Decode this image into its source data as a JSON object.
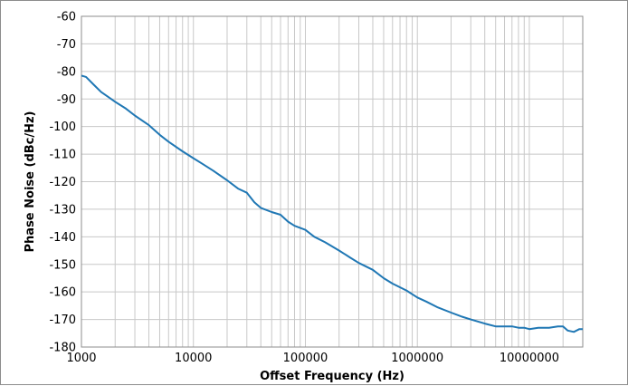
{
  "chart_data": {
    "type": "line",
    "title": "",
    "xlabel": "Offset Frequency (Hz)",
    "ylabel": "Phase Noise (dBc/Hz)",
    "x_scale": "log",
    "xlim": [
      1000,
      30000000
    ],
    "ylim": [
      -180,
      -60
    ],
    "x_ticks": [
      1000,
      10000,
      100000,
      1000000,
      10000000
    ],
    "x_tick_labels": [
      "1000",
      "10000",
      "100000",
      "1000000",
      "10000000"
    ],
    "y_ticks": [
      -60,
      -70,
      -80,
      -90,
      -100,
      -110,
      -120,
      -130,
      -140,
      -150,
      -160,
      -170,
      -180
    ],
    "y_tick_labels": [
      "-60",
      "-70",
      "-80",
      "-90",
      "-100",
      "-110",
      "-120",
      "-130",
      "-140",
      "-150",
      "-160",
      "-170",
      "-180"
    ],
    "grid": true,
    "minor_grid_x": true,
    "legend": "none",
    "series": [
      {
        "color": "#1f77b4",
        "x": [
          1000,
          1100,
          1300,
          1500,
          1700,
          2000,
          2500,
          3000,
          4000,
          5000,
          6000,
          8000,
          10000,
          12000,
          15000,
          20000,
          25000,
          30000,
          35000,
          40000,
          50000,
          60000,
          70000,
          80000,
          100000,
          120000,
          150000,
          200000,
          250000,
          300000,
          400000,
          500000,
          600000,
          800000,
          1000000,
          1200000,
          1500000,
          2000000,
          2500000,
          3000000,
          4000000,
          5000000,
          6000000,
          7000000,
          8000000,
          9000000,
          10000000,
          12000000,
          15000000,
          18000000,
          20000000,
          22000000,
          25000000,
          28000000,
          30000000
        ],
        "y": [
          -81.5,
          -82,
          -85,
          -87.5,
          -89,
          -91,
          -93.5,
          -96,
          -99.5,
          -103,
          -105.5,
          -109,
          -111.5,
          -113.5,
          -116,
          -119.5,
          -122.5,
          -124,
          -127.5,
          -129.5,
          -131,
          -132,
          -134.5,
          -136,
          -137.5,
          -140,
          -142,
          -145,
          -147.5,
          -149.5,
          -152,
          -155,
          -157,
          -159.5,
          -162,
          -163.5,
          -165.5,
          -167.5,
          -169,
          -170,
          -171.5,
          -172.5,
          -172.5,
          -172.5,
          -173,
          -173,
          -173.5,
          -173,
          -173,
          -172.5,
          -172.5,
          -174,
          -174.5,
          -173.5,
          -173.5
        ]
      }
    ]
  }
}
